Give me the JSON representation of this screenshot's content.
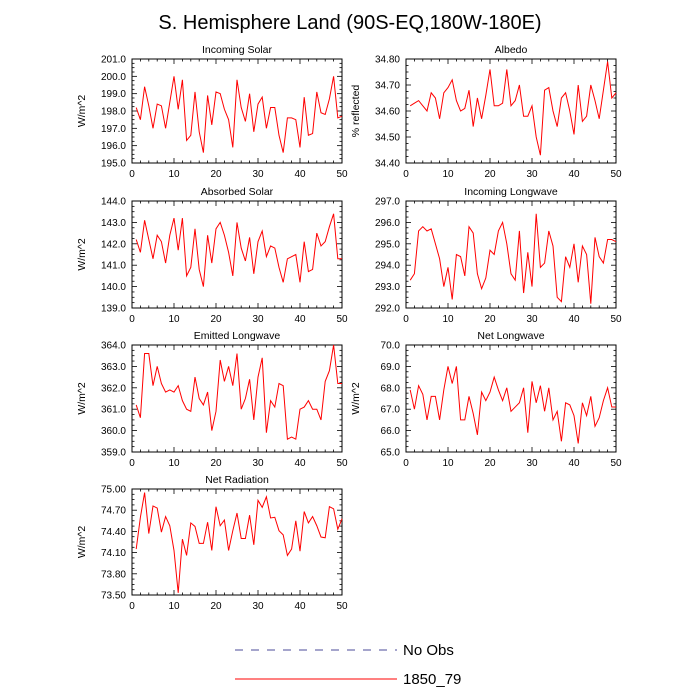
{
  "figure_title": "S. Hemisphere Land (90S-EQ,180W-180E)",
  "legend": [
    {
      "label": "No Obs",
      "style": "dashed",
      "color": "#4b4b9a"
    },
    {
      "label": "1850_79",
      "style": "solid",
      "color": "#ff0000"
    }
  ],
  "series_color": "#ff0000",
  "chart_data": [
    {
      "type": "line",
      "title": "Incoming Solar",
      "ylabel": "W/m^2",
      "xlim": [
        0,
        50
      ],
      "ylim": [
        195.0,
        201.0
      ],
      "xticks": [
        0,
        10,
        20,
        30,
        40,
        50
      ],
      "yticks": [
        195.0,
        196.0,
        197.0,
        198.0,
        199.0,
        200.0,
        201.0
      ],
      "ytick_labels": [
        "195.0",
        "196.0",
        "197.0",
        "198.0",
        "199.0",
        "200.0",
        "201.0"
      ],
      "x": [
        1,
        2,
        3,
        4,
        5,
        6,
        7,
        8,
        9,
        10,
        11,
        12,
        13,
        14,
        15,
        16,
        17,
        18,
        19,
        20,
        21,
        22,
        23,
        24,
        25,
        26,
        27,
        28,
        29,
        30,
        31,
        32,
        33,
        34,
        35,
        36,
        37,
        38,
        39,
        40,
        41,
        42,
        43,
        44,
        45,
        46,
        47,
        48,
        49,
        50
      ],
      "series": [
        {
          "name": "1850_79",
          "values": [
            198.2,
            197.5,
            199.4,
            198.3,
            197.0,
            198.4,
            198.3,
            197.0,
            198.5,
            200.0,
            198.1,
            199.8,
            196.3,
            196.6,
            199.1,
            196.8,
            195.6,
            198.9,
            197.2,
            199.1,
            199.0,
            198.1,
            197.5,
            195.9,
            199.8,
            198.2,
            197.4,
            199.0,
            196.8,
            198.4,
            198.8,
            197.0,
            198.2,
            198.2,
            196.6,
            195.6,
            197.6,
            197.6,
            197.5,
            195.9,
            198.8,
            196.6,
            196.7,
            199.1,
            197.9,
            197.8,
            198.7,
            200.0,
            197.6,
            197.7
          ]
        }
      ]
    },
    {
      "type": "line",
      "title": "Albedo",
      "ylabel": "% reflected",
      "xlim": [
        0,
        50
      ],
      "ylim": [
        34.4,
        34.8
      ],
      "xticks": [
        0,
        10,
        20,
        30,
        40,
        50
      ],
      "yticks": [
        34.4,
        34.5,
        34.6,
        34.7,
        34.8
      ],
      "ytick_labels": [
        "34.40",
        "34.50",
        "34.60",
        "34.70",
        "34.80"
      ],
      "x": [
        1,
        2,
        3,
        4,
        5,
        6,
        7,
        8,
        9,
        10,
        11,
        12,
        13,
        14,
        15,
        16,
        17,
        18,
        19,
        20,
        21,
        22,
        23,
        24,
        25,
        26,
        27,
        28,
        29,
        30,
        31,
        32,
        33,
        34,
        35,
        36,
        37,
        38,
        39,
        40,
        41,
        42,
        43,
        44,
        45,
        46,
        47,
        48,
        49,
        50
      ],
      "series": [
        {
          "name": "1850_79",
          "values": [
            34.62,
            34.63,
            34.64,
            34.62,
            34.6,
            34.67,
            34.65,
            34.57,
            34.67,
            34.69,
            34.72,
            34.64,
            34.6,
            34.61,
            34.68,
            34.54,
            34.65,
            34.57,
            34.66,
            34.76,
            34.62,
            34.62,
            34.63,
            34.76,
            34.62,
            34.64,
            34.7,
            34.58,
            34.58,
            34.62,
            34.5,
            34.43,
            34.68,
            34.69,
            34.6,
            34.54,
            34.65,
            34.67,
            34.6,
            34.51,
            34.7,
            34.56,
            34.58,
            34.7,
            34.64,
            34.57,
            34.68,
            34.79,
            34.65,
            34.67
          ]
        }
      ]
    },
    {
      "type": "line",
      "title": "Absorbed Solar",
      "ylabel": "W/m^2",
      "xlim": [
        0,
        50
      ],
      "ylim": [
        139.0,
        144.0
      ],
      "xticks": [
        0,
        10,
        20,
        30,
        40,
        50
      ],
      "yticks": [
        139.0,
        140.0,
        141.0,
        142.0,
        143.0,
        144.0
      ],
      "ytick_labels": [
        "139.0",
        "140.0",
        "141.0",
        "142.0",
        "143.0",
        "144.0"
      ],
      "x": [
        1,
        2,
        3,
        4,
        5,
        6,
        7,
        8,
        9,
        10,
        11,
        12,
        13,
        14,
        15,
        16,
        17,
        18,
        19,
        20,
        21,
        22,
        23,
        24,
        25,
        26,
        27,
        28,
        29,
        30,
        31,
        32,
        33,
        34,
        35,
        36,
        37,
        38,
        39,
        40,
        41,
        42,
        43,
        44,
        45,
        46,
        47,
        48,
        49,
        50
      ],
      "series": [
        {
          "name": "1850_79",
          "values": [
            142.2,
            141.6,
            143.1,
            142.2,
            141.3,
            142.4,
            142.1,
            141.1,
            142.4,
            143.2,
            141.7,
            143.2,
            140.5,
            140.9,
            142.7,
            140.8,
            140.0,
            142.4,
            141.1,
            142.7,
            143.0,
            142.4,
            141.6,
            140.5,
            143.0,
            141.8,
            141.2,
            142.3,
            140.6,
            142.1,
            142.6,
            141.4,
            141.9,
            141.8,
            140.9,
            140.2,
            141.3,
            141.4,
            141.5,
            140.2,
            142.1,
            140.7,
            140.8,
            142.5,
            141.9,
            142.1,
            142.8,
            143.4,
            141.3,
            141.3
          ]
        }
      ]
    },
    {
      "type": "line",
      "title": "Incoming Longwave",
      "ylabel": "",
      "xlim": [
        0,
        50
      ],
      "ylim": [
        292.0,
        297.0
      ],
      "xticks": [
        0,
        10,
        20,
        30,
        40,
        50
      ],
      "yticks": [
        292.0,
        293.0,
        294.0,
        295.0,
        296.0,
        297.0
      ],
      "ytick_labels": [
        "292.0",
        "293.0",
        "294.0",
        "295.0",
        "296.0",
        "297.0"
      ],
      "x": [
        1,
        2,
        3,
        4,
        5,
        6,
        7,
        8,
        9,
        10,
        11,
        12,
        13,
        14,
        15,
        16,
        17,
        18,
        19,
        20,
        21,
        22,
        23,
        24,
        25,
        26,
        27,
        28,
        29,
        30,
        31,
        32,
        33,
        34,
        35,
        36,
        37,
        38,
        39,
        40,
        41,
        42,
        43,
        44,
        45,
        46,
        47,
        48,
        49,
        50
      ],
      "series": [
        {
          "name": "1850_79",
          "values": [
            293.3,
            293.6,
            295.6,
            295.8,
            295.6,
            295.7,
            295.0,
            294.3,
            293.0,
            293.9,
            292.4,
            294.5,
            294.4,
            293.5,
            295.8,
            295.5,
            293.6,
            292.9,
            293.4,
            294.7,
            294.5,
            295.6,
            296.0,
            295.0,
            293.6,
            293.3,
            295.6,
            292.7,
            294.6,
            293.0,
            296.4,
            293.9,
            294.1,
            295.6,
            294.9,
            292.5,
            292.3,
            294.4,
            293.9,
            295.0,
            293.2,
            294.9,
            294.5,
            292.2,
            295.3,
            294.4,
            294.1,
            295.2,
            295.2,
            295.1
          ]
        }
      ]
    },
    {
      "type": "line",
      "title": "Emitted Longwave",
      "ylabel": "W/m^2",
      "xlim": [
        0,
        50
      ],
      "ylim": [
        359.0,
        364.0
      ],
      "xticks": [
        0,
        10,
        20,
        30,
        40,
        50
      ],
      "yticks": [
        359.0,
        360.0,
        361.0,
        362.0,
        363.0,
        364.0
      ],
      "ytick_labels": [
        "359.0",
        "360.0",
        "361.0",
        "362.0",
        "363.0",
        "364.0"
      ],
      "x": [
        1,
        2,
        3,
        4,
        5,
        6,
        7,
        8,
        9,
        10,
        11,
        12,
        13,
        14,
        15,
        16,
        17,
        18,
        19,
        20,
        21,
        22,
        23,
        24,
        25,
        26,
        27,
        28,
        29,
        30,
        31,
        32,
        33,
        34,
        35,
        36,
        37,
        38,
        39,
        40,
        41,
        42,
        43,
        44,
        45,
        46,
        47,
        48,
        49,
        50
      ],
      "series": [
        {
          "name": "1850_79",
          "values": [
            361.2,
            360.6,
            363.6,
            363.6,
            362.1,
            363.0,
            362.2,
            361.8,
            361.9,
            361.8,
            362.1,
            361.4,
            361.0,
            360.9,
            362.5,
            361.5,
            361.2,
            361.8,
            360.0,
            360.9,
            363.3,
            362.3,
            363.0,
            362.1,
            363.6,
            361.0,
            361.5,
            362.4,
            360.5,
            362.5,
            363.4,
            359.9,
            361.4,
            361.1,
            362.2,
            362.1,
            359.6,
            359.7,
            359.6,
            361.0,
            361.1,
            361.4,
            361.0,
            361.0,
            360.5,
            362.3,
            362.8,
            364.0,
            362.2,
            362.2
          ]
        }
      ]
    },
    {
      "type": "line",
      "title": "Net Longwave",
      "ylabel": "W/m^2",
      "xlim": [
        0,
        50
      ],
      "ylim": [
        65.0,
        70.0
      ],
      "xticks": [
        0,
        10,
        20,
        30,
        40,
        50
      ],
      "yticks": [
        65.0,
        66.0,
        67.0,
        68.0,
        69.0,
        70.0
      ],
      "ytick_labels": [
        "65.0",
        "66.0",
        "67.0",
        "68.0",
        "69.0",
        "70.0"
      ],
      "x": [
        1,
        2,
        3,
        4,
        5,
        6,
        7,
        8,
        9,
        10,
        11,
        12,
        13,
        14,
        15,
        16,
        17,
        18,
        19,
        20,
        21,
        22,
        23,
        24,
        25,
        26,
        27,
        28,
        29,
        30,
        31,
        32,
        33,
        34,
        35,
        36,
        37,
        38,
        39,
        40,
        41,
        42,
        43,
        44,
        45,
        46,
        47,
        48,
        49,
        50
      ],
      "series": [
        {
          "name": "1850_79",
          "values": [
            67.9,
            67.0,
            68.1,
            67.7,
            66.5,
            67.6,
            67.6,
            66.5,
            67.9,
            69.0,
            68.2,
            69.0,
            66.5,
            66.5,
            67.6,
            66.8,
            65.8,
            67.8,
            67.4,
            67.8,
            68.5,
            67.9,
            67.4,
            68.0,
            66.9,
            67.1,
            67.3,
            68.0,
            65.9,
            68.3,
            67.3,
            68.1,
            66.9,
            68.0,
            66.5,
            66.9,
            65.5,
            67.3,
            67.2,
            66.7,
            65.4,
            67.3,
            66.7,
            67.6,
            66.2,
            66.6,
            67.4,
            68.0,
            67.1,
            67.1
          ]
        }
      ]
    },
    {
      "type": "line",
      "title": "Net Radiation",
      "ylabel": "W/m^2",
      "xlim": [
        0,
        50
      ],
      "ylim": [
        73.5,
        75.0
      ],
      "xticks": [
        0,
        10,
        20,
        30,
        40,
        50
      ],
      "yticks": [
        73.5,
        73.8,
        74.1,
        74.4,
        74.7,
        75.0
      ],
      "ytick_labels": [
        "73.50",
        "73.80",
        "74.10",
        "74.40",
        "74.70",
        "75.00"
      ],
      "x": [
        1,
        2,
        3,
        4,
        5,
        6,
        7,
        8,
        9,
        10,
        11,
        12,
        13,
        14,
        15,
        16,
        17,
        18,
        19,
        20,
        21,
        22,
        23,
        24,
        25,
        26,
        27,
        28,
        29,
        30,
        31,
        32,
        33,
        34,
        35,
        36,
        37,
        38,
        39,
        40,
        41,
        42,
        43,
        44,
        45,
        46,
        47,
        48,
        49,
        50
      ],
      "series": [
        {
          "name": "1850_79",
          "values": [
            74.15,
            74.6,
            74.95,
            74.37,
            74.76,
            74.73,
            74.39,
            74.61,
            74.48,
            74.13,
            73.53,
            74.29,
            74.06,
            74.52,
            74.47,
            74.23,
            74.23,
            74.53,
            74.13,
            74.75,
            74.48,
            74.56,
            74.13,
            74.41,
            74.66,
            74.3,
            74.3,
            74.63,
            74.21,
            74.84,
            74.74,
            74.89,
            74.59,
            74.6,
            74.41,
            74.35,
            74.06,
            74.15,
            74.55,
            74.12,
            74.68,
            74.52,
            74.61,
            74.48,
            74.32,
            74.31,
            74.75,
            74.72,
            74.43,
            74.58
          ]
        }
      ]
    }
  ]
}
